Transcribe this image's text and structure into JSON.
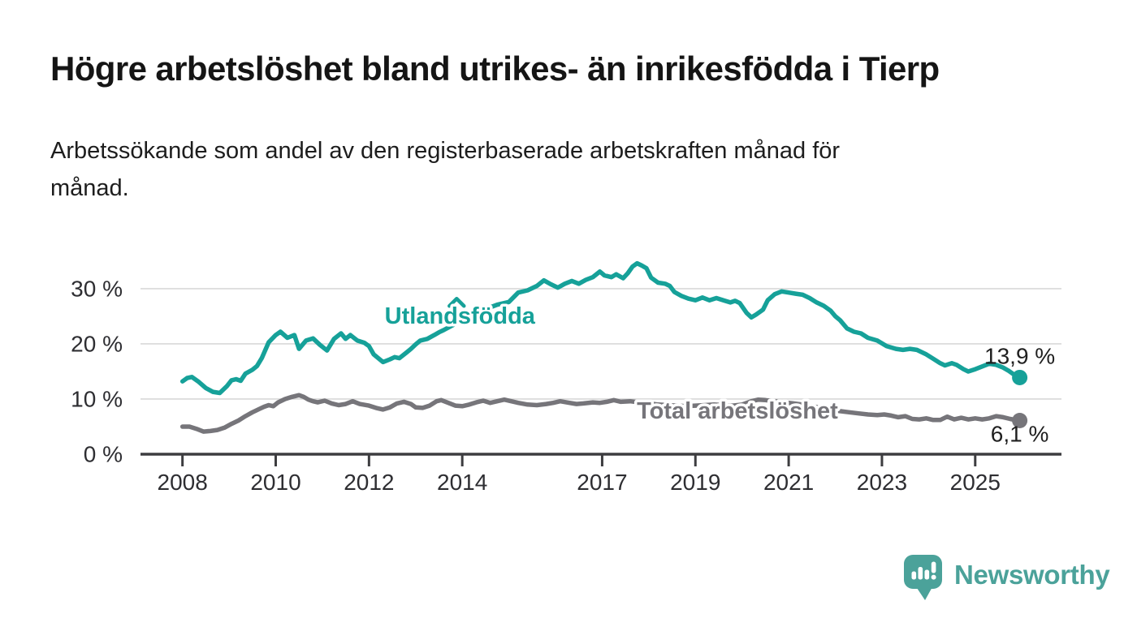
{
  "header": {
    "title": "Högre arbetslöshet bland utrikes- än inrikesfödda i Tierp",
    "subtitle_lines": [
      "Arbetssökande som andel av den registerbaserade arbetskraften månad för",
      "månad."
    ]
  },
  "chart_data": {
    "type": "line",
    "title": "Högre arbetslöshet bland utrikes- än inrikesfödda i Tierp",
    "subtitle": "Arbetssökande som andel av den registerbaserade arbetskraften månad för månad.",
    "unit": "%",
    "xlim": [
      2007.1,
      2026.85
    ],
    "ylim": [
      0,
      36.9
    ],
    "grid": "horizontal-only",
    "legend_position": "inline-labels",
    "x_ticks": [
      2008,
      2010,
      2012,
      2014,
      2017,
      2019,
      2021,
      2023,
      2025
    ],
    "x_tick_labels": [
      "2008",
      "2010",
      "2012",
      "2014",
      "2017",
      "2019",
      "2021",
      "2023",
      "2025"
    ],
    "y_ticks": [
      0,
      10,
      20,
      30
    ],
    "y_tick_labels": [
      "0 %",
      "10 %",
      "20 %",
      "30 %"
    ],
    "colors": {
      "grid": "#d8d8d8",
      "axis": "#3d3d40",
      "tick_label": "#2e2e32",
      "value_label": "#1f1f1f",
      "background": "#ffffff"
    },
    "series": [
      {
        "name": "Utlandsfödda",
        "slug": "utlandsfodda",
        "color": "#16a199",
        "end_label": "13,9 %",
        "end_value": 13.9,
        "end_label_dy": -17,
        "label_pos": {
          "x": 2013.95,
          "y": 25.0
        },
        "caret": {
          "x": 2013.88,
          "y": 27.6
        },
        "points": [
          [
            2008.0,
            13.2
          ],
          [
            2008.1,
            13.8
          ],
          [
            2008.2,
            14.0
          ],
          [
            2008.35,
            13.1
          ],
          [
            2008.5,
            12.0
          ],
          [
            2008.65,
            11.3
          ],
          [
            2008.8,
            11.1
          ],
          [
            2008.95,
            12.3
          ],
          [
            2009.05,
            13.4
          ],
          [
            2009.15,
            13.6
          ],
          [
            2009.25,
            13.3
          ],
          [
            2009.35,
            14.6
          ],
          [
            2009.5,
            15.3
          ],
          [
            2009.6,
            16.0
          ],
          [
            2009.7,
            17.4
          ],
          [
            2009.85,
            20.3
          ],
          [
            2010.0,
            21.6
          ],
          [
            2010.1,
            22.2
          ],
          [
            2010.25,
            21.1
          ],
          [
            2010.4,
            21.6
          ],
          [
            2010.5,
            19.1
          ],
          [
            2010.65,
            20.6
          ],
          [
            2010.8,
            21.0
          ],
          [
            2010.95,
            19.8
          ],
          [
            2011.1,
            18.8
          ],
          [
            2011.25,
            20.9
          ],
          [
            2011.4,
            21.9
          ],
          [
            2011.5,
            20.9
          ],
          [
            2011.6,
            21.6
          ],
          [
            2011.75,
            20.6
          ],
          [
            2011.9,
            20.2
          ],
          [
            2012.0,
            19.6
          ],
          [
            2012.1,
            18.1
          ],
          [
            2012.2,
            17.4
          ],
          [
            2012.3,
            16.7
          ],
          [
            2012.45,
            17.2
          ],
          [
            2012.55,
            17.6
          ],
          [
            2012.65,
            17.4
          ],
          [
            2012.8,
            18.4
          ],
          [
            2012.9,
            19.1
          ],
          [
            2013.0,
            19.9
          ],
          [
            2013.1,
            20.6
          ],
          [
            2013.25,
            20.9
          ],
          [
            2013.4,
            21.6
          ],
          [
            2013.5,
            22.1
          ],
          [
            2013.6,
            22.5
          ],
          [
            2013.8,
            23.4
          ],
          [
            2014.0,
            24.3
          ],
          [
            2014.25,
            25.3
          ],
          [
            2014.5,
            26.3
          ],
          [
            2014.75,
            27.1
          ],
          [
            2015.0,
            27.6
          ],
          [
            2015.2,
            29.3
          ],
          [
            2015.4,
            29.7
          ],
          [
            2015.6,
            30.5
          ],
          [
            2015.75,
            31.5
          ],
          [
            2015.9,
            30.8
          ],
          [
            2016.05,
            30.2
          ],
          [
            2016.2,
            30.9
          ],
          [
            2016.35,
            31.4
          ],
          [
            2016.5,
            30.9
          ],
          [
            2016.65,
            31.6
          ],
          [
            2016.8,
            32.1
          ],
          [
            2016.95,
            33.1
          ],
          [
            2017.05,
            32.4
          ],
          [
            2017.2,
            32.1
          ],
          [
            2017.3,
            32.6
          ],
          [
            2017.45,
            31.9
          ],
          [
            2017.55,
            32.8
          ],
          [
            2017.65,
            34.0
          ],
          [
            2017.75,
            34.6
          ],
          [
            2017.85,
            34.2
          ],
          [
            2017.95,
            33.7
          ],
          [
            2018.05,
            32.0
          ],
          [
            2018.2,
            31.1
          ],
          [
            2018.35,
            30.9
          ],
          [
            2018.45,
            30.5
          ],
          [
            2018.55,
            29.4
          ],
          [
            2018.7,
            28.7
          ],
          [
            2018.85,
            28.2
          ],
          [
            2019.0,
            27.9
          ],
          [
            2019.15,
            28.4
          ],
          [
            2019.3,
            27.9
          ],
          [
            2019.45,
            28.3
          ],
          [
            2019.6,
            27.9
          ],
          [
            2019.75,
            27.5
          ],
          [
            2019.85,
            27.8
          ],
          [
            2019.95,
            27.4
          ],
          [
            2020.1,
            25.6
          ],
          [
            2020.2,
            24.8
          ],
          [
            2020.3,
            25.3
          ],
          [
            2020.45,
            26.2
          ],
          [
            2020.55,
            27.9
          ],
          [
            2020.7,
            29.0
          ],
          [
            2020.85,
            29.5
          ],
          [
            2021.0,
            29.3
          ],
          [
            2021.15,
            29.1
          ],
          [
            2021.3,
            28.9
          ],
          [
            2021.45,
            28.3
          ],
          [
            2021.6,
            27.5
          ],
          [
            2021.75,
            26.9
          ],
          [
            2021.9,
            26.0
          ],
          [
            2022.0,
            25.0
          ],
          [
            2022.1,
            24.3
          ],
          [
            2022.25,
            22.8
          ],
          [
            2022.4,
            22.2
          ],
          [
            2022.55,
            21.9
          ],
          [
            2022.7,
            21.1
          ],
          [
            2022.9,
            20.6
          ],
          [
            2023.1,
            19.6
          ],
          [
            2023.3,
            19.1
          ],
          [
            2023.45,
            18.9
          ],
          [
            2023.6,
            19.1
          ],
          [
            2023.75,
            18.9
          ],
          [
            2023.95,
            18.1
          ],
          [
            2024.1,
            17.3
          ],
          [
            2024.25,
            16.5
          ],
          [
            2024.35,
            16.1
          ],
          [
            2024.5,
            16.5
          ],
          [
            2024.6,
            16.2
          ],
          [
            2024.75,
            15.4
          ],
          [
            2024.85,
            15.0
          ],
          [
            2025.0,
            15.4
          ],
          [
            2025.15,
            15.9
          ],
          [
            2025.3,
            16.4
          ],
          [
            2025.45,
            16.2
          ],
          [
            2025.6,
            15.7
          ],
          [
            2025.72,
            15.1
          ],
          [
            2025.82,
            14.5
          ],
          [
            2025.92,
            13.9
          ]
        ]
      },
      {
        "name": "Total arbetslöshet",
        "slug": "total-arbetsloshet",
        "color": "#76757a",
        "end_label": "6,1 %",
        "end_value": 6.1,
        "end_label_dy": 26,
        "label_pos": {
          "x": 2019.9,
          "y": 7.8
        },
        "caret": null,
        "points": [
          [
            2008.0,
            5.0
          ],
          [
            2008.15,
            5.0
          ],
          [
            2008.3,
            4.6
          ],
          [
            2008.45,
            4.1
          ],
          [
            2008.6,
            4.2
          ],
          [
            2008.75,
            4.4
          ],
          [
            2008.9,
            4.8
          ],
          [
            2009.05,
            5.5
          ],
          [
            2009.2,
            6.1
          ],
          [
            2009.35,
            6.9
          ],
          [
            2009.5,
            7.6
          ],
          [
            2009.65,
            8.2
          ],
          [
            2009.75,
            8.6
          ],
          [
            2009.85,
            8.9
          ],
          [
            2009.95,
            8.7
          ],
          [
            2010.05,
            9.4
          ],
          [
            2010.2,
            10.0
          ],
          [
            2010.35,
            10.4
          ],
          [
            2010.5,
            10.7
          ],
          [
            2010.6,
            10.4
          ],
          [
            2010.7,
            9.9
          ],
          [
            2010.8,
            9.6
          ],
          [
            2010.9,
            9.4
          ],
          [
            2011.05,
            9.7
          ],
          [
            2011.2,
            9.2
          ],
          [
            2011.35,
            8.9
          ],
          [
            2011.5,
            9.1
          ],
          [
            2011.65,
            9.6
          ],
          [
            2011.8,
            9.1
          ],
          [
            2012.0,
            8.8
          ],
          [
            2012.15,
            8.4
          ],
          [
            2012.3,
            8.1
          ],
          [
            2012.45,
            8.5
          ],
          [
            2012.6,
            9.2
          ],
          [
            2012.75,
            9.5
          ],
          [
            2012.9,
            9.1
          ],
          [
            2013.0,
            8.5
          ],
          [
            2013.15,
            8.4
          ],
          [
            2013.3,
            8.8
          ],
          [
            2013.45,
            9.6
          ],
          [
            2013.55,
            9.8
          ],
          [
            2013.7,
            9.3
          ],
          [
            2013.85,
            8.8
          ],
          [
            2014.0,
            8.7
          ],
          [
            2014.15,
            9.0
          ],
          [
            2014.3,
            9.4
          ],
          [
            2014.45,
            9.7
          ],
          [
            2014.6,
            9.3
          ],
          [
            2014.75,
            9.6
          ],
          [
            2014.9,
            9.9
          ],
          [
            2015.05,
            9.6
          ],
          [
            2015.2,
            9.3
          ],
          [
            2015.4,
            9.0
          ],
          [
            2015.6,
            8.9
          ],
          [
            2015.8,
            9.1
          ],
          [
            2015.95,
            9.3
          ],
          [
            2016.1,
            9.6
          ],
          [
            2016.3,
            9.3
          ],
          [
            2016.45,
            9.1
          ],
          [
            2016.6,
            9.2
          ],
          [
            2016.8,
            9.4
          ],
          [
            2016.95,
            9.3
          ],
          [
            2017.1,
            9.5
          ],
          [
            2017.25,
            9.8
          ],
          [
            2017.4,
            9.5
          ],
          [
            2017.6,
            9.6
          ],
          [
            2017.8,
            9.4
          ],
          [
            2018.0,
            9.2
          ],
          [
            2018.2,
            9.0
          ],
          [
            2018.4,
            8.9
          ],
          [
            2018.6,
            8.8
          ],
          [
            2018.8,
            8.7
          ],
          [
            2019.0,
            8.8
          ],
          [
            2019.2,
            8.9
          ],
          [
            2019.4,
            9.0
          ],
          [
            2019.6,
            8.9
          ],
          [
            2019.8,
            8.8
          ],
          [
            2020.0,
            9.0
          ],
          [
            2020.2,
            9.6
          ],
          [
            2020.35,
            9.9
          ],
          [
            2020.5,
            9.8
          ],
          [
            2020.7,
            9.6
          ],
          [
            2020.9,
            9.4
          ],
          [
            2021.1,
            9.2
          ],
          [
            2021.3,
            9.0
          ],
          [
            2021.5,
            8.7
          ],
          [
            2021.7,
            8.4
          ],
          [
            2021.9,
            8.1
          ],
          [
            2022.1,
            7.8
          ],
          [
            2022.3,
            7.6
          ],
          [
            2022.5,
            7.4
          ],
          [
            2022.7,
            7.2
          ],
          [
            2022.9,
            7.1
          ],
          [
            2023.05,
            7.2
          ],
          [
            2023.2,
            7.0
          ],
          [
            2023.35,
            6.7
          ],
          [
            2023.5,
            6.9
          ],
          [
            2023.65,
            6.4
          ],
          [
            2023.8,
            6.3
          ],
          [
            2023.95,
            6.5
          ],
          [
            2024.1,
            6.2
          ],
          [
            2024.25,
            6.2
          ],
          [
            2024.4,
            6.8
          ],
          [
            2024.55,
            6.3
          ],
          [
            2024.7,
            6.6
          ],
          [
            2024.85,
            6.3
          ],
          [
            2025.0,
            6.5
          ],
          [
            2025.15,
            6.3
          ],
          [
            2025.3,
            6.5
          ],
          [
            2025.45,
            6.9
          ],
          [
            2025.6,
            6.7
          ],
          [
            2025.75,
            6.4
          ],
          [
            2025.92,
            6.1
          ]
        ]
      }
    ]
  },
  "footer": {
    "brand": "Newsworthy",
    "logo_color": "#4ba29a"
  }
}
